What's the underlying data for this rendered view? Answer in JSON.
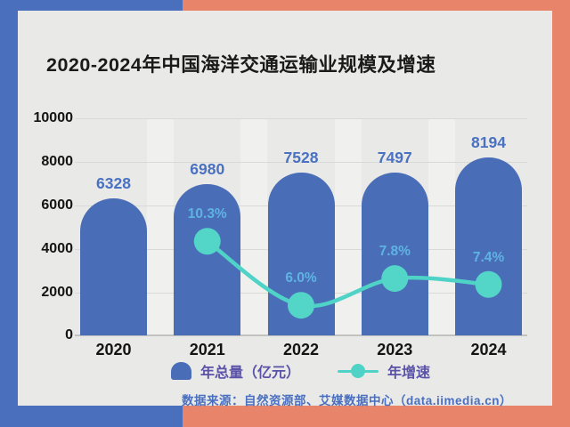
{
  "page": {
    "title": "2020-2024年中国海洋交通运输业规模及增速"
  },
  "colors": {
    "background_left": "#4a6fbc",
    "background_right": "#e8846a",
    "card_background": "#e9e9e7",
    "bar": "#4a6db8",
    "bar_value_label": "#4a71c2",
    "growth_line": "#4fd3c6",
    "growth_dot": "#53d5c8",
    "growth_label": "#5eb3e2",
    "legend_text": "#5952a8",
    "source_text": "#4a6fc0",
    "axis_text": "#141414",
    "gridline": "#d9d9d7"
  },
  "chart_data": {
    "type": "bar",
    "title": "2020-2024年中国海洋交通运输业规模及增速",
    "categories": [
      "2020",
      "2021",
      "2022",
      "2023",
      "2024"
    ],
    "series": [
      {
        "name": "年总量（亿元）",
        "type": "bar",
        "values": [
          6328,
          6980,
          7528,
          7497,
          8194
        ]
      },
      {
        "name": "年增速",
        "type": "line",
        "unit": "%",
        "values": [
          null,
          10.3,
          6.0,
          7.8,
          7.4
        ],
        "labels": [
          "",
          "10.3%",
          "6.0%",
          "7.8%",
          "7.4%"
        ]
      }
    ],
    "xlabel": "",
    "ylabel": "",
    "y_axis": {
      "min": 0,
      "max": 10000,
      "tick_step": 2000,
      "ticks": [
        0,
        2000,
        4000,
        6000,
        8000,
        10000
      ]
    },
    "grid": true,
    "legend_position": "bottom"
  },
  "legend": {
    "bar_label": "年总量（亿元）",
    "line_label": "年增速"
  },
  "source": {
    "text": "数据来源：自然资源部、艾媒数据中心（data.iimedia.cn）"
  }
}
